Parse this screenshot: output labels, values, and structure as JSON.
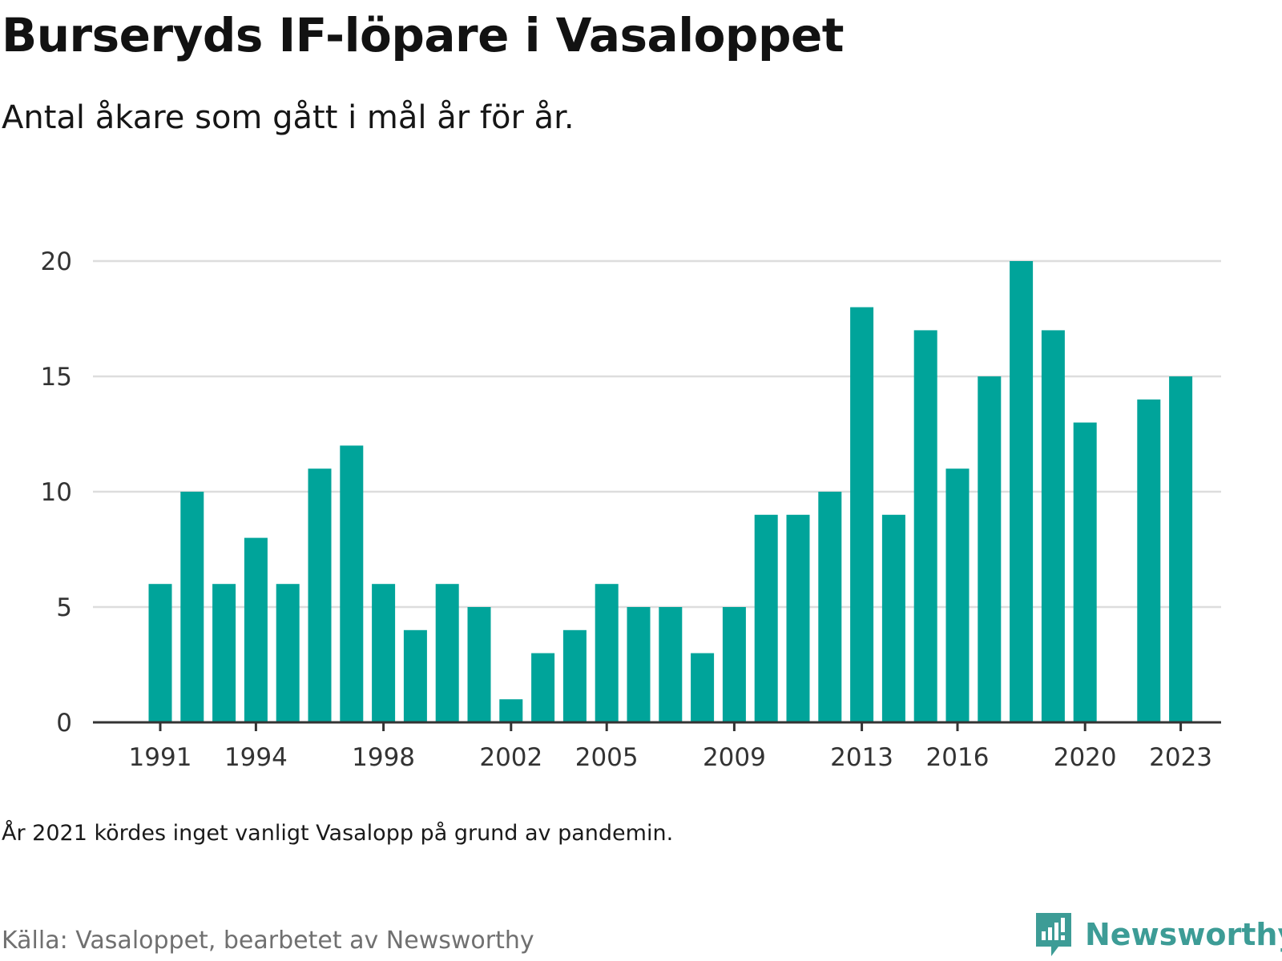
{
  "title": "Burseryds IF-löpare i Vasaloppet",
  "subtitle": "Antal åkare som gått i mål år för år.",
  "note": "År 2021 kördes inget vanligt Vasalopp på grund av pandemin.",
  "source": "Källa: Vasaloppet, bearbetet av Newsworthy",
  "brand": {
    "name": "Newsworthy",
    "icon": "newsworthy-logo-icon",
    "color": "#3d9c96"
  },
  "colors": {
    "bar": "#00a49a",
    "grid": "#dddddd",
    "axis": "#333333"
  },
  "chart_data": {
    "type": "bar",
    "x": [
      1991,
      1992,
      1993,
      1994,
      1995,
      1996,
      1997,
      1998,
      1999,
      2000,
      2001,
      2002,
      2003,
      2004,
      2005,
      2006,
      2007,
      2008,
      2009,
      2010,
      2011,
      2012,
      2013,
      2014,
      2015,
      2016,
      2017,
      2018,
      2019,
      2020,
      2021,
      2022,
      2023
    ],
    "values": [
      6,
      10,
      6,
      8,
      6,
      11,
      12,
      6,
      4,
      6,
      5,
      1,
      3,
      4,
      6,
      5,
      5,
      3,
      5,
      9,
      9,
      10,
      18,
      9,
      17,
      11,
      15,
      20,
      17,
      13,
      null,
      14,
      15
    ],
    "x_tick_labels": [
      "1991",
      "1994",
      "1998",
      "2002",
      "2005",
      "2009",
      "2013",
      "2016",
      "2020",
      "2023"
    ],
    "y_ticks": [
      0,
      5,
      10,
      15,
      20
    ],
    "ylim": [
      0,
      20
    ],
    "grid": true,
    "legend": false
  }
}
